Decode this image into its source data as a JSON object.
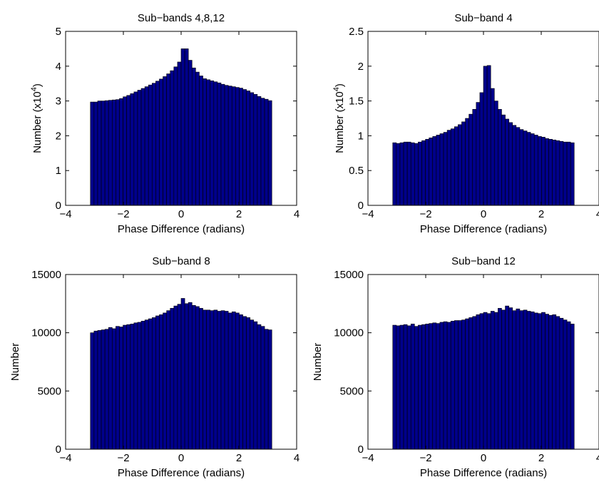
{
  "chart_data": [
    {
      "type": "bar",
      "title": "Sub−bands 4,8,12",
      "xlabel": "Phase Difference (radians)",
      "ylabel": "Number (x10",
      "ylabel_sup": "4",
      "ylabel_suffix": ")",
      "xlim": [
        -4,
        4
      ],
      "ylim": [
        0,
        5
      ],
      "xticks": [
        -4,
        -2,
        0,
        2,
        4
      ],
      "xtick_labels": [
        "−4",
        "−2",
        "0",
        "2",
        "4"
      ],
      "yticks": [
        0,
        1,
        2,
        3,
        4,
        5
      ],
      "ytick_labels": [
        "0",
        "1",
        "2",
        "3",
        "4",
        "5"
      ],
      "bin_start": -3.1416,
      "bin_end": 3.1416,
      "values": [
        2.97,
        2.97,
        3.0,
        3.0,
        3.01,
        3.02,
        3.03,
        3.04,
        3.07,
        3.12,
        3.16,
        3.21,
        3.26,
        3.31,
        3.36,
        3.41,
        3.46,
        3.51,
        3.57,
        3.63,
        3.7,
        3.78,
        3.87,
        3.98,
        4.12,
        4.5,
        4.5,
        4.17,
        3.95,
        3.83,
        3.72,
        3.64,
        3.61,
        3.58,
        3.55,
        3.52,
        3.48,
        3.45,
        3.43,
        3.41,
        3.39,
        3.37,
        3.33,
        3.29,
        3.24,
        3.19,
        3.13,
        3.08,
        3.05,
        3.01
      ]
    },
    {
      "type": "bar",
      "title": "Sub−band 4",
      "xlabel": "Phase Difference (radians)",
      "ylabel": "Number (x10",
      "ylabel_sup": "4",
      "ylabel_suffix": ")",
      "xlim": [
        -4,
        4
      ],
      "ylim": [
        0,
        2.5
      ],
      "xticks": [
        -4,
        -2,
        0,
        2,
        4
      ],
      "xtick_labels": [
        "−4",
        "−2",
        "0",
        "2",
        "4"
      ],
      "yticks": [
        0,
        0.5,
        1,
        1.5,
        2,
        2.5
      ],
      "ytick_labels": [
        "0",
        "0.5",
        "1",
        "1.5",
        "2",
        "2.5"
      ],
      "bin_start": -3.1416,
      "bin_end": 3.1416,
      "values": [
        0.9,
        0.89,
        0.9,
        0.91,
        0.91,
        0.9,
        0.89,
        0.91,
        0.93,
        0.95,
        0.97,
        0.99,
        1.01,
        1.03,
        1.05,
        1.08,
        1.1,
        1.13,
        1.16,
        1.2,
        1.25,
        1.31,
        1.38,
        1.48,
        1.62,
        2.0,
        2.01,
        1.68,
        1.5,
        1.38,
        1.3,
        1.24,
        1.19,
        1.15,
        1.12,
        1.09,
        1.07,
        1.05,
        1.03,
        1.01,
        0.99,
        0.98,
        0.96,
        0.95,
        0.94,
        0.93,
        0.92,
        0.91,
        0.91,
        0.9
      ]
    },
    {
      "type": "bar",
      "title": "Sub−band 8",
      "xlabel": "Phase Difference (radians)",
      "ylabel": "Number",
      "ylabel_sup": "",
      "ylabel_suffix": "",
      "xlim": [
        -4,
        4
      ],
      "ylim": [
        0,
        15000
      ],
      "xticks": [
        -4,
        -2,
        0,
        2,
        4
      ],
      "xtick_labels": [
        "−4",
        "−2",
        "0",
        "2",
        "4"
      ],
      "yticks": [
        0,
        5000,
        10000,
        15000
      ],
      "ytick_labels": [
        "0",
        "5000",
        "10000",
        "15000"
      ],
      "bin_start": -3.1416,
      "bin_end": 3.1416,
      "values": [
        10000,
        10150,
        10200,
        10250,
        10300,
        10450,
        10350,
        10550,
        10500,
        10650,
        10700,
        10750,
        10850,
        10900,
        11000,
        11100,
        11200,
        11300,
        11450,
        11550,
        11700,
        11900,
        12100,
        12300,
        12450,
        12950,
        12500,
        12600,
        12350,
        12250,
        12100,
        11950,
        11950,
        11900,
        11950,
        11850,
        11900,
        11850,
        11700,
        11800,
        11700,
        11550,
        11400,
        11300,
        11100,
        10950,
        10700,
        10550,
        10300,
        10250
      ]
    },
    {
      "type": "bar",
      "title": "Sub−band 12",
      "xlabel": "Phase Difference (radians)",
      "ylabel": "Number",
      "ylabel_sup": "",
      "ylabel_suffix": "",
      "xlim": [
        -4,
        4
      ],
      "ylim": [
        0,
        15000
      ],
      "xticks": [
        -4,
        -2,
        0,
        2,
        4
      ],
      "xtick_labels": [
        "−4",
        "−2",
        "0",
        "2",
        "4"
      ],
      "yticks": [
        0,
        5000,
        10000,
        15000
      ],
      "ytick_labels": [
        "0",
        "5000",
        "10000",
        "15000"
      ],
      "bin_start": -3.1416,
      "bin_end": 3.1416,
      "values": [
        10650,
        10600,
        10650,
        10700,
        10600,
        10750,
        10550,
        10650,
        10700,
        10750,
        10800,
        10850,
        10800,
        10900,
        10950,
        10900,
        11000,
        11050,
        11050,
        11100,
        11200,
        11300,
        11400,
        11550,
        11650,
        11750,
        11650,
        11850,
        11750,
        12100,
        11950,
        12300,
        12150,
        11900,
        12050,
        11900,
        11950,
        11850,
        11800,
        11700,
        11650,
        11750,
        11600,
        11500,
        11550,
        11400,
        11250,
        11100,
        10950,
        10750
      ]
    }
  ]
}
